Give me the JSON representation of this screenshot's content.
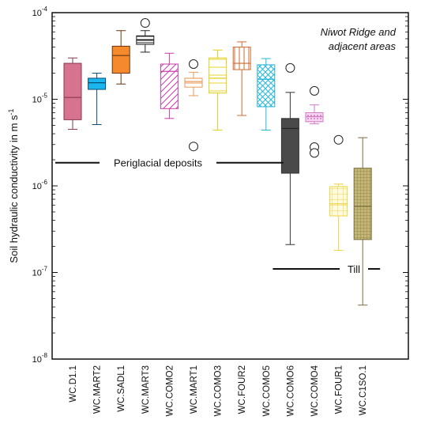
{
  "chart_data": {
    "type": "boxplot",
    "title": "Niwot Ridge and adjacent areas",
    "ylabel": "Soil hydraulic conductivity in m s",
    "ylabel_sup": "-1",
    "yscale": "log",
    "ylim": [
      1e-08,
      0.0001
    ],
    "yticks": [
      {
        "value": 0.0001,
        "base": "10",
        "exp": "-4"
      },
      {
        "value": 1e-05,
        "base": "10",
        "exp": "-5"
      },
      {
        "value": 1e-06,
        "base": "10",
        "exp": "-6"
      },
      {
        "value": 1e-07,
        "base": "10",
        "exp": "-7"
      },
      {
        "value": 1e-08,
        "base": "10",
        "exp": "-8"
      }
    ],
    "categories": [
      "WC.D1.1",
      "WC.MART2",
      "WC.SADL1",
      "WC.MART3",
      "WC.COMO2",
      "WC.MART1",
      "WC.COMO3",
      "WC.FOUR2",
      "WC.COMO5",
      "WC.COMO6",
      "WC.COMO4",
      "WC.FOUR1",
      "WC.C1SO.1"
    ],
    "boxes": [
      {
        "whisker_low": 4.5e-06,
        "q1": 5.8e-06,
        "median": 1.05e-05,
        "q3": 2.6e-05,
        "whisker_high": 3e-05,
        "outliers": [],
        "color": "#d6738f",
        "stroke": "#8a3a52",
        "pattern": "solid"
      },
      {
        "whisker_low": 5.1e-06,
        "q1": 1.3e-05,
        "median": 1.55e-05,
        "q3": 1.75e-05,
        "whisker_high": 2e-05,
        "outliers": [],
        "color": "#1ab6ef",
        "stroke": "#0a4d75",
        "pattern": "solid"
      },
      {
        "whisker_low": 1.5e-05,
        "q1": 2e-05,
        "median": 3.2e-05,
        "q3": 4.1e-05,
        "whisker_high": 6.2e-05,
        "outliers": [],
        "color": "#f58a2c",
        "stroke": "#6a3410",
        "pattern": "solid"
      },
      {
        "whisker_low": 3.5e-05,
        "q1": 4.3e-05,
        "median": 4.8e-05,
        "q3": 5.4e-05,
        "whisker_high": 6.2e-05,
        "outliers": [
          7.6e-05
        ],
        "color": "#ffffff",
        "stroke": "#222222",
        "pattern": "hlines"
      },
      {
        "whisker_low": 6e-06,
        "q1": 7.8e-06,
        "median": 2.1e-05,
        "q3": 2.55e-05,
        "whisker_high": 3.4e-05,
        "outliers": [],
        "color": "#c83fa7",
        "stroke": "#c83fa7",
        "pattern": "diag"
      },
      {
        "whisker_low": 1.1e-05,
        "q1": 1.38e-05,
        "median": 1.6e-05,
        "q3": 1.75e-05,
        "whisker_high": 2.05e-05,
        "outliers": [
          2.55e-05,
          2.85e-06
        ],
        "color": "#e69a5b",
        "stroke": "#e69a5b",
        "pattern": "hlines"
      },
      {
        "whisker_low": 4.4e-06,
        "q1": 1.18e-05,
        "median": 1.75e-05,
        "q3": 3e-05,
        "whisker_high": 3.7e-05,
        "outliers": [],
        "color": "#f3e32a",
        "stroke": "#e0cf1a",
        "pattern": "hlines"
      },
      {
        "whisker_low": 6.5e-06,
        "q1": 2.2e-05,
        "median": 2.6e-05,
        "q3": 4e-05,
        "whisker_high": 4.6e-05,
        "outliers": [],
        "color": "#e58a4f",
        "stroke": "#d06a30",
        "pattern": "vlines"
      },
      {
        "whisker_low": 4.4e-06,
        "q1": 8.2e-06,
        "median": 1.7e-05,
        "q3": 2.5e-05,
        "whisker_high": 2.95e-05,
        "outliers": [],
        "color": "#24b5d8",
        "stroke": "#24b5d8",
        "pattern": "cross"
      },
      {
        "whisker_low": 2.1e-07,
        "q1": 1.4e-06,
        "median": 4.6e-06,
        "q3": 6e-06,
        "whisker_high": 1.2e-05,
        "outliers": [
          2.3e-05
        ],
        "color": "#4a4a4a",
        "stroke": "#333333",
        "pattern": "solid"
      },
      {
        "whisker_low": 5.2e-06,
        "q1": 5.5e-06,
        "median": 6.3e-06,
        "q3": 7e-06,
        "whisker_high": 8.6e-06,
        "outliers": [
          1.25e-05,
          2.8e-06,
          2.4e-06
        ],
        "color": "#e8a1dc",
        "stroke": "#d37ac4",
        "pattern": "dots"
      },
      {
        "whisker_low": 1.8e-07,
        "q1": 4.5e-07,
        "median": 6.2e-07,
        "q3": 9.8e-07,
        "whisker_high": 1.05e-06,
        "outliers": [
          3.4e-06
        ],
        "color": "#fbe97a",
        "stroke": "#f0d240",
        "pattern": "grid"
      },
      {
        "whisker_low": 4.2e-08,
        "q1": 2.4e-07,
        "median": 5.8e-07,
        "q3": 1.6e-06,
        "whisker_high": 3.6e-06,
        "outliers": [],
        "color": "#c4b677",
        "stroke": "#7a6e3a",
        "pattern": "smallgrid"
      }
    ],
    "annotations": [
      {
        "text": "Periglacial deposits",
        "y": 1.85e-06,
        "from_index": 0,
        "to_index": 8
      },
      {
        "text": "Till",
        "y": 1.1e-07,
        "from_index": 9,
        "to_index": 12
      }
    ],
    "grid": false,
    "legend": "none"
  }
}
